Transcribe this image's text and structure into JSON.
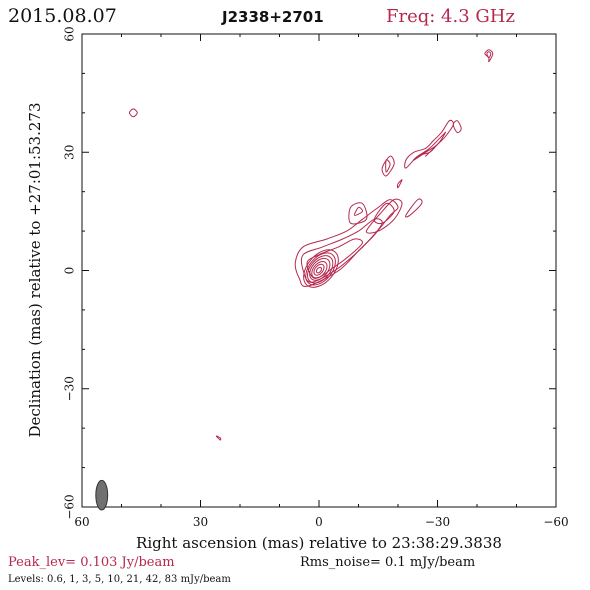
{
  "header": {
    "date": "2015.08.07",
    "source": "J2338+2701",
    "freq_label": "Freq: 4.3 GHz"
  },
  "colors": {
    "contour": "#b5284e",
    "beam": "#707070",
    "text": "#111111"
  },
  "footer": {
    "peak": "Peak_lev=  0.103 Jy/beam",
    "rms": "Rms_noise=  0.1 mJy/beam",
    "levels": "Levels: 0.6,   1,   3,   5,  10,  21,  42,  83  mJy/beam"
  },
  "chart_data": {
    "type": "contour",
    "xlabel": "Right ascension (mas) relative to 23:38:29.3838",
    "ylabel": "Declination (mas) relative to +27:01:53.273",
    "xlim": [
      60,
      -60
    ],
    "ylim": [
      -60,
      60
    ],
    "xticks": [
      60,
      30,
      0,
      -30,
      -60
    ],
    "yticks": [
      -60,
      -30,
      0,
      30,
      60
    ],
    "xtick_labels": [
      "60",
      "30",
      "0",
      "−30",
      "−60"
    ],
    "ytick_labels": [
      "−60",
      "−30",
      "0",
      "30",
      "60"
    ],
    "contour_levels_mJy": [
      0.6,
      1,
      3,
      5,
      10,
      21,
      42,
      83
    ],
    "peak_Jy_per_beam": 0.103,
    "rms_mJy_per_beam": 0.1,
    "beam": {
      "x": 55,
      "y": -57,
      "major_mas": 4.5,
      "minor_mas": 1.8
    },
    "core_rings": [
      {
        "x": -0.5,
        "y": 0.5,
        "rx": 5.5,
        "ry": 3.4,
        "angle": -50
      },
      {
        "x": -0.4,
        "y": 0.4,
        "rx": 4.7,
        "ry": 2.9,
        "angle": -50
      },
      {
        "x": -0.3,
        "y": 0.3,
        "rx": 4.0,
        "ry": 2.5,
        "angle": -50
      },
      {
        "x": -0.2,
        "y": 0.3,
        "rx": 3.2,
        "ry": 2.0,
        "angle": -50
      },
      {
        "x": -0.1,
        "y": 0.2,
        "rx": 2.4,
        "ry": 1.5,
        "angle": -50
      },
      {
        "x": 0.0,
        "y": 0.2,
        "rx": 1.6,
        "ry": 1.0,
        "angle": -50
      },
      {
        "x": 0.0,
        "y": 0.1,
        "rx": 0.8,
        "ry": 0.5,
        "angle": -50
      }
    ],
    "features": [
      {
        "name": "jet-envelope-outer",
        "points": [
          [
            3,
            -4
          ],
          [
            -5,
            0
          ],
          [
            -10,
            5
          ],
          [
            -14,
            9
          ],
          [
            -18,
            14
          ],
          [
            -20,
            16
          ],
          [
            -18,
            18
          ],
          [
            -15,
            16
          ],
          [
            -11,
            13
          ],
          [
            -7,
            10
          ],
          [
            -2,
            8
          ],
          [
            4,
            6
          ],
          [
            6,
            2
          ],
          [
            5,
            -2
          ]
        ]
      },
      {
        "name": "jet-envelope-mid",
        "points": [
          [
            2,
            -3
          ],
          [
            -4,
            0
          ],
          [
            -9,
            4
          ],
          [
            -13,
            8
          ],
          [
            -16,
            12
          ],
          [
            -14,
            13
          ],
          [
            -10,
            10
          ],
          [
            -6,
            8
          ],
          [
            -1,
            6
          ],
          [
            4,
            4
          ],
          [
            4,
            0
          ]
        ]
      },
      {
        "name": "jet-envelope-inner",
        "points": [
          [
            1,
            -2
          ],
          [
            -4,
            1
          ],
          [
            -8,
            4
          ],
          [
            -11,
            7
          ],
          [
            -9,
            8
          ],
          [
            -5,
            6
          ],
          [
            0,
            4
          ],
          [
            3,
            2
          ]
        ]
      },
      {
        "name": "knot-a-outer",
        "points": [
          [
            -12,
            10
          ],
          [
            -16,
            15
          ],
          [
            -19,
            18
          ],
          [
            -21,
            17
          ],
          [
            -19,
            13
          ],
          [
            -15,
            10
          ]
        ]
      },
      {
        "name": "knot-a-inner",
        "points": [
          [
            -14,
            13
          ],
          [
            -17,
            17
          ],
          [
            -19,
            15
          ],
          [
            -16,
            12
          ]
        ]
      },
      {
        "name": "knot-b-outer",
        "points": [
          [
            -8,
            12
          ],
          [
            -12,
            13
          ],
          [
            -11,
            17
          ],
          [
            -8,
            16
          ]
        ]
      },
      {
        "name": "knot-b-inner",
        "points": [
          [
            -9,
            14
          ],
          [
            -11,
            15
          ],
          [
            -10,
            16
          ]
        ]
      },
      {
        "name": "blob-c-outer",
        "points": [
          [
            -22,
            14
          ],
          [
            -25,
            18
          ],
          [
            -26,
            17
          ],
          [
            -23,
            14
          ]
        ]
      },
      {
        "name": "blob-d-outer",
        "points": [
          [
            -17,
            24
          ],
          [
            -19,
            27
          ],
          [
            -18,
            29
          ],
          [
            -16,
            26
          ]
        ]
      },
      {
        "name": "blob-d-inner",
        "points": [
          [
            -17,
            25
          ],
          [
            -18,
            27
          ],
          [
            -17,
            28
          ]
        ]
      },
      {
        "name": "blob-e",
        "points": [
          [
            -20,
            21
          ],
          [
            -21,
            23
          ],
          [
            -20,
            22
          ]
        ]
      },
      {
        "name": "chain-outer",
        "points": [
          [
            -22,
            26
          ],
          [
            -25,
            29
          ],
          [
            -28,
            30
          ],
          [
            -30,
            32
          ],
          [
            -32,
            34
          ],
          [
            -34,
            37
          ],
          [
            -33,
            38
          ],
          [
            -31,
            35
          ],
          [
            -29,
            33
          ],
          [
            -27,
            31
          ],
          [
            -24,
            30
          ],
          [
            -22,
            28
          ]
        ]
      },
      {
        "name": "chain-mid",
        "points": [
          [
            -24,
            28
          ],
          [
            -27,
            30
          ],
          [
            -30,
            32
          ],
          [
            -32,
            35
          ],
          [
            -31,
            34
          ],
          [
            -28,
            31
          ],
          [
            -25,
            29
          ]
        ]
      },
      {
        "name": "chain-inner",
        "points": [
          [
            -27,
            29
          ],
          [
            -29,
            31
          ],
          [
            -28,
            30
          ]
        ]
      },
      {
        "name": "blob-f",
        "points": [
          [
            -35,
            35
          ],
          [
            -36,
            36
          ],
          [
            -35,
            38
          ],
          [
            -34,
            37
          ]
        ]
      },
      {
        "name": "blob-g-outer",
        "points": [
          [
            -43,
            53
          ],
          [
            -44,
            55
          ],
          [
            -43,
            56
          ],
          [
            -42,
            55
          ],
          [
            -43,
            54
          ]
        ]
      },
      {
        "name": "blob-g-inner",
        "points": [
          [
            -43,
            54
          ],
          [
            -43.5,
            55
          ],
          [
            -43,
            55.5
          ],
          [
            -42.5,
            55
          ]
        ]
      },
      {
        "name": "blob-h",
        "points": [
          [
            47,
            39
          ],
          [
            48,
            40
          ],
          [
            47,
            41
          ],
          [
            46,
            40
          ]
        ]
      },
      {
        "name": "blob-i",
        "points": [
          [
            25,
            -43
          ],
          [
            26,
            -42
          ],
          [
            25,
            -42.5
          ]
        ]
      }
    ]
  }
}
